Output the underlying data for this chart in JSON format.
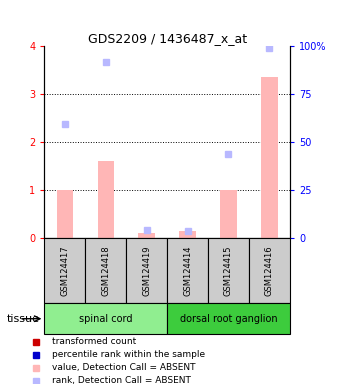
{
  "title": "GDS2209 / 1436487_x_at",
  "samples": [
    "GSM124417",
    "GSM124418",
    "GSM124419",
    "GSM124414",
    "GSM124415",
    "GSM124416"
  ],
  "bar_values_absent": [
    1.0,
    1.6,
    0.1,
    0.15,
    1.0,
    3.35
  ],
  "rank_values_absent": [
    59.5,
    91.5,
    4.0,
    3.5,
    44.0,
    99.0
  ],
  "tissues": [
    {
      "label": "spinal cord",
      "start": 0,
      "end": 3,
      "color": "#90ee90"
    },
    {
      "label": "dorsal root ganglion",
      "start": 3,
      "end": 6,
      "color": "#3dcc3d"
    }
  ],
  "ylim_left": [
    0,
    4
  ],
  "ylim_right": [
    0,
    100
  ],
  "yticks_left": [
    0,
    1,
    2,
    3,
    4
  ],
  "yticks_right": [
    0,
    25,
    50,
    75,
    100
  ],
  "yticklabels_right": [
    "0",
    "25",
    "50",
    "75",
    "100%"
  ],
  "bar_color_absent": "#ffb6b6",
  "rank_color_absent": "#b8b8ff",
  "bar_color_present": "#cc0000",
  "rank_color_present": "#0000cc",
  "tissue_label": "tissue",
  "sample_box_color": "#cccccc",
  "bar_width": 0.4
}
